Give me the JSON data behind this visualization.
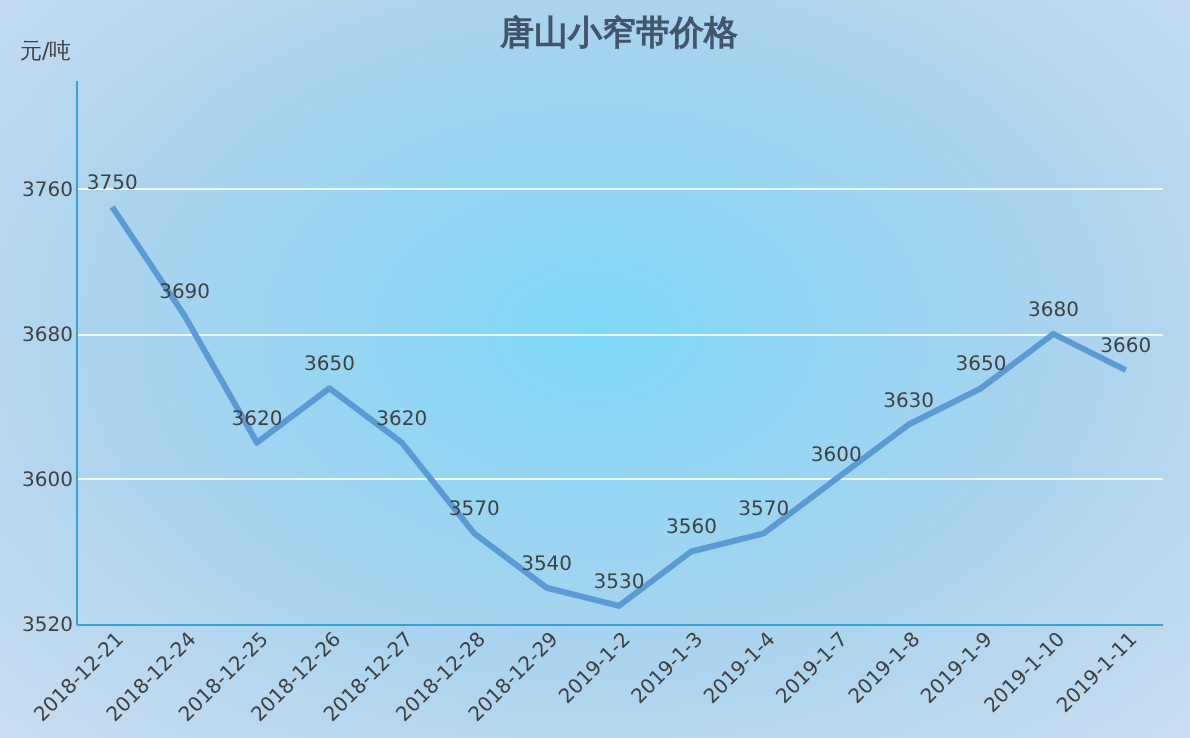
{
  "chart_data": {
    "type": "line",
    "title": "唐山小窄带价格",
    "ylabel": "元/吨",
    "categories": [
      "2018-12-21",
      "2018-12-24",
      "2018-12-25",
      "2018-12-26",
      "2018-12-27",
      "2018-12-28",
      "2018-12-29",
      "2019-1-2",
      "2019-1-3",
      "2019-1-4",
      "2019-1-7",
      "2019-1-8",
      "2019-1-9",
      "2019-1-10",
      "2019-1-11"
    ],
    "series": [
      {
        "color": "#5b9bd5",
        "values": [
          3750,
          3690,
          3620,
          3650,
          3620,
          3570,
          3540,
          3530,
          3560,
          3570,
          3600,
          3630,
          3650,
          3680,
          3660
        ]
      }
    ],
    "ylim": [
      3520,
      3820
    ],
    "yticks": [
      3520,
      3600,
      3680,
      3760
    ],
    "grid": "y",
    "data_labels": true,
    "legend": false,
    "marker": "none",
    "line_style": "solid"
  }
}
